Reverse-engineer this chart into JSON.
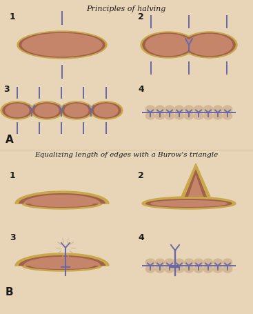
{
  "title_A": "Principles of halving",
  "title_B": "Equalizing length of edges with a Burow's triangle",
  "bg_color": "#e8d5b7",
  "skin_color": "#c4856a",
  "skin_dark": "#a0614a",
  "gold_color": "#c9a84c",
  "suture_color": "#6868a8",
  "text_color": "#1a1a1a",
  "bump_color": "#d4b896",
  "label_A": "A",
  "label_B": "B",
  "figw": 3.67,
  "figh": 4.55,
  "dpi": 100
}
